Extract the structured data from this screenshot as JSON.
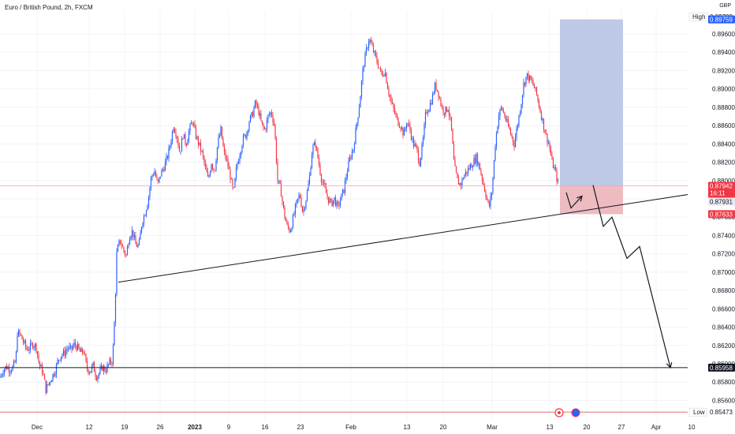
{
  "header": {
    "symbol_title": "Euro / British Pound, 2h, FXCM",
    "currency": "GBP"
  },
  "colors": {
    "up": "#2962ff",
    "down": "#f23645",
    "target_zone": "#b9c6e6",
    "stop_zone": "#ecb7bd",
    "current_price_bg": "#f23645",
    "high_bg": "#2962ff"
  },
  "chart_data": {
    "type": "candlestick",
    "ylim": [
      0.8538,
      0.8985
    ],
    "y_ticks": [
      "0.89600",
      "0.89400",
      "0.89200",
      "0.89000",
      "0.88800",
      "0.88600",
      "0.88400",
      "0.88200",
      "0.88000",
      "0.87800",
      "0.87600",
      "0.87400",
      "0.87200",
      "0.87000",
      "0.86800",
      "0.86600",
      "0.86400",
      "0.86200",
      "0.86000",
      "0.85800",
      "0.85600"
    ],
    "x_ticks": [
      "Dec",
      "12",
      "19",
      "26",
      "2023",
      "9",
      "16",
      "23",
      "Feb",
      "13",
      "20",
      "Mar",
      "13",
      "20",
      "27",
      "Apr",
      "10"
    ],
    "price_path": [
      [
        0,
        0.8585
      ],
      [
        4,
        0.8593
      ],
      [
        8,
        0.8597
      ],
      [
        12,
        0.8594
      ],
      [
        16,
        0.8596
      ],
      [
        20,
        0.8603
      ],
      [
        22,
        0.8634
      ],
      [
        26,
        0.8631
      ],
      [
        30,
        0.8623
      ],
      [
        34,
        0.8616
      ],
      [
        38,
        0.8618
      ],
      [
        42,
        0.8622
      ],
      [
        46,
        0.8618
      ],
      [
        50,
        0.8598
      ],
      [
        54,
        0.8592
      ],
      [
        58,
        0.8572
      ],
      [
        62,
        0.8579
      ],
      [
        66,
        0.8586
      ],
      [
        70,
        0.8593
      ],
      [
        74,
        0.8605
      ],
      [
        78,
        0.861
      ],
      [
        82,
        0.8612
      ],
      [
        86,
        0.8618
      ],
      [
        90,
        0.8615
      ],
      [
        94,
        0.8621
      ],
      [
        98,
        0.8618
      ],
      [
        102,
        0.8612
      ],
      [
        106,
        0.8614
      ],
      [
        110,
        0.8595
      ],
      [
        114,
        0.8592
      ],
      [
        118,
        0.8598
      ],
      [
        122,
        0.8586
      ],
      [
        126,
        0.859
      ],
      [
        130,
        0.8596
      ],
      [
        134,
        0.8593
      ],
      [
        138,
        0.86
      ],
      [
        142,
        0.8603
      ],
      [
        144,
        0.8623
      ],
      [
        146,
        0.8665
      ],
      [
        148,
        0.872
      ],
      [
        152,
        0.8735
      ],
      [
        156,
        0.8725
      ],
      [
        160,
        0.8718
      ],
      [
        164,
        0.874
      ],
      [
        168,
        0.8745
      ],
      [
        172,
        0.873
      ],
      [
        176,
        0.8728
      ],
      [
        180,
        0.8755
      ],
      [
        184,
        0.8765
      ],
      [
        188,
        0.878
      ],
      [
        192,
        0.8805
      ],
      [
        196,
        0.881
      ],
      [
        200,
        0.8795
      ],
      [
        204,
        0.8808
      ],
      [
        208,
        0.8815
      ],
      [
        212,
        0.8825
      ],
      [
        216,
        0.884
      ],
      [
        220,
        0.886
      ],
      [
        224,
        0.885
      ],
      [
        228,
        0.883
      ],
      [
        232,
        0.885
      ],
      [
        236,
        0.884
      ],
      [
        240,
        0.8855
      ],
      [
        244,
        0.8865
      ],
      [
        248,
        0.885
      ],
      [
        252,
        0.884
      ],
      [
        256,
        0.883
      ],
      [
        260,
        0.8815
      ],
      [
        264,
        0.88
      ],
      [
        268,
        0.882
      ],
      [
        272,
        0.881
      ],
      [
        276,
        0.884
      ],
      [
        280,
        0.8855
      ],
      [
        284,
        0.883
      ],
      [
        288,
        0.882
      ],
      [
        292,
        0.8805
      ],
      [
        296,
        0.8785
      ],
      [
        300,
        0.8815
      ],
      [
        304,
        0.883
      ],
      [
        308,
        0.8845
      ],
      [
        312,
        0.885
      ],
      [
        316,
        0.8865
      ],
      [
        320,
        0.8872
      ],
      [
        324,
        0.8885
      ],
      [
        328,
        0.8875
      ],
      [
        332,
        0.886
      ],
      [
        336,
        0.8855
      ],
      [
        340,
        0.887
      ],
      [
        344,
        0.8875
      ],
      [
        348,
        0.886
      ],
      [
        352,
        0.88
      ],
      [
        356,
        0.879
      ],
      [
        360,
        0.8765
      ],
      [
        364,
        0.875
      ],
      [
        368,
        0.8745
      ],
      [
        372,
        0.876
      ],
      [
        376,
        0.8775
      ],
      [
        380,
        0.8785
      ],
      [
        384,
        0.8765
      ],
      [
        388,
        0.878
      ],
      [
        392,
        0.88
      ],
      [
        396,
        0.8835
      ],
      [
        400,
        0.884
      ],
      [
        404,
        0.882
      ],
      [
        408,
        0.88
      ],
      [
        412,
        0.879
      ],
      [
        416,
        0.878
      ],
      [
        420,
        0.8775
      ],
      [
        424,
        0.878
      ],
      [
        428,
        0.877
      ],
      [
        432,
        0.878
      ],
      [
        436,
        0.879
      ],
      [
        440,
        0.881
      ],
      [
        444,
        0.8825
      ],
      [
        448,
        0.8835
      ],
      [
        452,
        0.886
      ],
      [
        456,
        0.8885
      ],
      [
        460,
        0.892
      ],
      [
        464,
        0.894
      ],
      [
        468,
        0.8955
      ],
      [
        472,
        0.8945
      ],
      [
        476,
        0.8935
      ],
      [
        480,
        0.8925
      ],
      [
        484,
        0.8915
      ],
      [
        488,
        0.892
      ],
      [
        492,
        0.89
      ],
      [
        496,
        0.8885
      ],
      [
        500,
        0.8875
      ],
      [
        504,
        0.8865
      ],
      [
        508,
        0.886
      ],
      [
        512,
        0.885
      ],
      [
        516,
        0.8865
      ],
      [
        520,
        0.8855
      ],
      [
        524,
        0.884
      ],
      [
        528,
        0.8835
      ],
      [
        532,
        0.882
      ],
      [
        536,
        0.884
      ],
      [
        540,
        0.8875
      ],
      [
        544,
        0.888
      ],
      [
        548,
        0.889
      ],
      [
        552,
        0.8905
      ],
      [
        556,
        0.8895
      ],
      [
        560,
        0.888
      ],
      [
        564,
        0.8875
      ],
      [
        568,
        0.888
      ],
      [
        572,
        0.886
      ],
      [
        576,
        0.8815
      ],
      [
        580,
        0.88
      ],
      [
        584,
        0.8795
      ],
      [
        588,
        0.8805
      ],
      [
        592,
        0.881
      ],
      [
        596,
        0.8815
      ],
      [
        600,
        0.882
      ],
      [
        604,
        0.8825
      ],
      [
        608,
        0.8815
      ],
      [
        612,
        0.88
      ],
      [
        616,
        0.8785
      ],
      [
        620,
        0.877
      ],
      [
        624,
        0.879
      ],
      [
        628,
        0.884
      ],
      [
        632,
        0.887
      ],
      [
        636,
        0.888
      ],
      [
        640,
        0.887
      ],
      [
        644,
        0.886
      ],
      [
        648,
        0.885
      ],
      [
        652,
        0.884
      ],
      [
        656,
        0.886
      ],
      [
        660,
        0.888
      ],
      [
        664,
        0.8905
      ],
      [
        668,
        0.8915
      ],
      [
        672,
        0.891
      ],
      [
        676,
        0.8905
      ],
      [
        680,
        0.8895
      ],
      [
        684,
        0.888
      ],
      [
        688,
        0.8865
      ],
      [
        692,
        0.885
      ],
      [
        696,
        0.884
      ],
      [
        700,
        0.882
      ],
      [
        704,
        0.881
      ],
      [
        708,
        0.8795
      ]
    ],
    "trendline": [
      [
        150,
        0.8689
      ],
      [
        897,
        0.8788
      ]
    ],
    "support_level": 0.85958,
    "low_level": 0.85473,
    "current_level": 0.87942,
    "position_target": 0.89759,
    "position_stop": 0.87633,
    "projection": [
      [
        718,
        0.8787
      ],
      [
        724,
        0.877
      ],
      [
        738,
        0.8783
      ],
      [
        752,
        0.8795
      ],
      [
        765,
        0.875
      ],
      [
        776,
        0.876
      ],
      [
        795,
        0.8715
      ],
      [
        811,
        0.8728
      ],
      [
        850,
        0.85958
      ]
    ],
    "labels": {
      "high_label": "High",
      "high_value": "0.89788",
      "target_value": "0.89759",
      "current_value": "0.87942",
      "current_countdown": "16:11",
      "entry_value": "0.87931",
      "stop_value": "0.87633",
      "support_value": "0.85958",
      "low_label": "Low",
      "low_value": "0.85473"
    }
  }
}
